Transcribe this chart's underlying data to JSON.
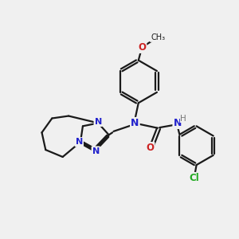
{
  "bg_color": "#f0f0f0",
  "bond_color": "#1a1a1a",
  "N_color": "#2222cc",
  "O_color": "#cc2222",
  "Cl_color": "#22aa22",
  "H_color": "#777777",
  "figsize": [
    3.0,
    3.0
  ],
  "dpi": 100,
  "xlim": [
    0,
    10
  ],
  "ylim": [
    0,
    10
  ]
}
